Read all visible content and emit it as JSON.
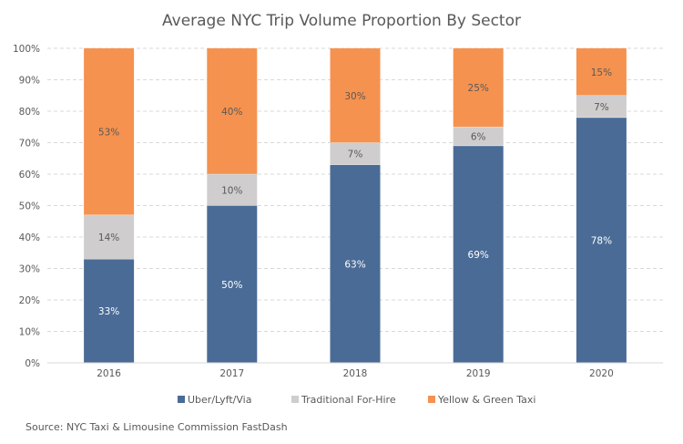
{
  "chart_data": {
    "type": "bar",
    "stacked": true,
    "title": "Average NYC Trip Volume Proportion By Sector",
    "xlabel": "",
    "ylabel": "",
    "ylim": [
      0,
      100
    ],
    "yticks": [
      0,
      10,
      20,
      30,
      40,
      50,
      60,
      70,
      80,
      90,
      100
    ],
    "ytick_labels": [
      "0%",
      "10%",
      "20%",
      "30%",
      "40%",
      "50%",
      "60%",
      "70%",
      "80%",
      "90%",
      "100%"
    ],
    "grid": "horizontal-dashed",
    "categories": [
      "2016",
      "2017",
      "2018",
      "2019",
      "2020"
    ],
    "series": [
      {
        "name": "Uber/Lyft/Via",
        "color": "#4a6b96",
        "label_color": "#ffffff",
        "values": [
          33,
          50,
          63,
          69,
          78
        ]
      },
      {
        "name": "Traditional For-Hire",
        "color": "#cfcdcd",
        "label_color": "#595959",
        "values": [
          14,
          10,
          7,
          6,
          7
        ]
      },
      {
        "name": "Yellow & Green Taxi",
        "color": "#f5924f",
        "label_color": "#595959",
        "values": [
          53,
          40,
          30,
          25,
          15
        ]
      }
    ],
    "data_labels": [
      [
        "33%",
        "50%",
        "63%",
        "69%",
        "78%"
      ],
      [
        "14%",
        "10%",
        "7%",
        "6%",
        "7%"
      ],
      [
        "53%",
        "40%",
        "30%",
        "25%",
        "15%"
      ]
    ],
    "legend_position": "bottom-center",
    "source": "Source: NYC Taxi & Limousine Commission FastDash"
  }
}
